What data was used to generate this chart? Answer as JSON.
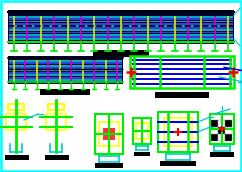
{
  "bg_color": "#ffffff",
  "border_color": "#00cccc",
  "green": "#00bb00",
  "bright_green": "#00ee00",
  "dark_green": "#008800",
  "blue": "#0000dd",
  "bright_blue": "#4444ff",
  "cyan": "#00cccc",
  "bright_cyan": "#00ffff",
  "yellow": "#dddd00",
  "bright_yellow": "#ffff00",
  "red": "#dd0000",
  "bright_red": "#ff0000",
  "magenta": "#cc00cc",
  "black": "#000000",
  "white": "#ffffff",
  "dark_bg": "#000033",
  "navy": "#000055",
  "gray": "#888888"
}
